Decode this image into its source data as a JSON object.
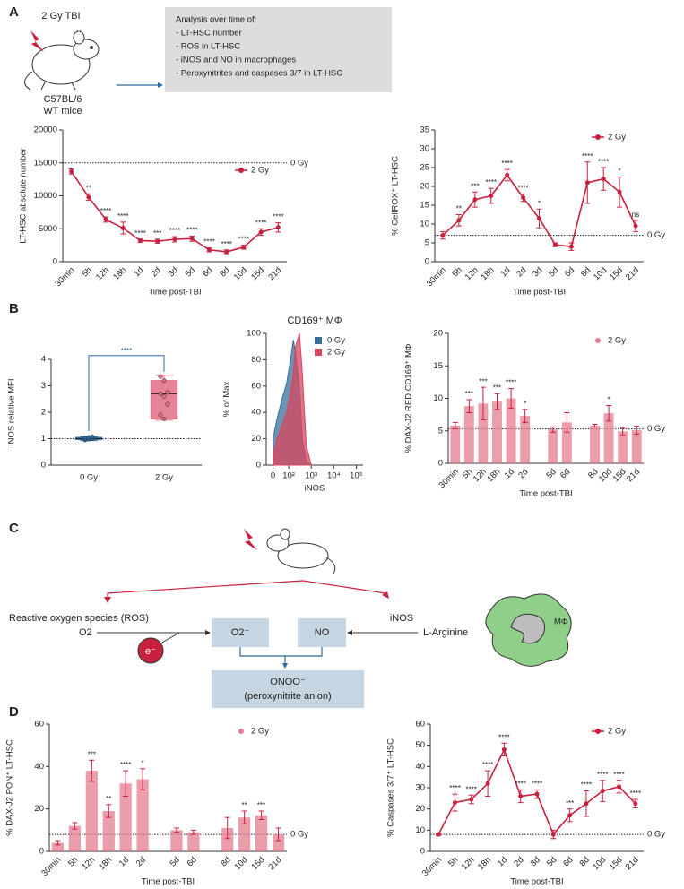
{
  "panels": [
    "A",
    "B",
    "C",
    "D"
  ],
  "schematic": {
    "dose": "2 Gy TBI",
    "strain": "C57BL/6",
    "mice": "WT mice",
    "box_title": "Analysis over time of:",
    "items": [
      "- LT-HSC number",
      "- ROS in LT-HSC",
      "- iNOS and NO in macrophages",
      "- Peroxynitrites and caspases 3/7 in LT-HSC"
    ]
  },
  "diagram": {
    "ros": "Reactive oxygen species (ROS)",
    "o2": "O2",
    "electron": "e⁻",
    "superoxide": "O2⁻",
    "no": "NO",
    "inos": "iNOS",
    "arginine": "L-Arginine",
    "macrophage": "MΦ",
    "product": "ONOO⁻",
    "product_name": "(peroxynitrite anion)"
  },
  "chart_data": [
    {
      "type": "line",
      "y_label": "LT-HSC absolute number",
      "x_label": "Time post-TBI",
      "categories": [
        "30min",
        "5h",
        "12h",
        "18h",
        "1d",
        "2d",
        "3d",
        "5d",
        "6d",
        "8d",
        "10d",
        "15d",
        "21d"
      ],
      "series": [
        {
          "name": "2 Gy",
          "color": "#c8203f",
          "values": [
            13700,
            9800,
            6400,
            5100,
            3200,
            3100,
            3400,
            3500,
            1800,
            1500,
            2200,
            4500,
            5200
          ],
          "errors": [
            400,
            500,
            400,
            900,
            250,
            300,
            400,
            400,
            300,
            300,
            300,
            500,
            700
          ]
        }
      ],
      "annotations": [
        null,
        "**",
        "****",
        "****",
        "****",
        "***",
        "****",
        "****",
        "****",
        "****",
        "****",
        "****",
        "****"
      ],
      "reference": {
        "value": 15000,
        "label": "0 Gy"
      },
      "ylim": [
        0,
        20000
      ],
      "yticks": [
        0,
        5000,
        10000,
        15000,
        20000
      ],
      "legend": "right"
    },
    {
      "type": "line",
      "y_label": "% CellROX⁺ LT-HSC",
      "x_label": "Time post-TBI",
      "categories": [
        "30min",
        "5h",
        "12h",
        "18h",
        "1d",
        "2d",
        "3d",
        "5d",
        "6d",
        "8d",
        "10d",
        "15d",
        "21d"
      ],
      "series": [
        {
          "name": "2 Gy",
          "color": "#c8203f",
          "values": [
            7,
            11,
            16.5,
            17.5,
            23,
            17,
            11.5,
            4.5,
            4,
            21,
            22,
            18.5,
            9.5
          ],
          "errors": [
            1,
            1.5,
            2,
            2,
            1.5,
            1,
            2.5,
            0.5,
            1,
            5.5,
            3,
            4,
            1.5
          ]
        }
      ],
      "annotations": [
        null,
        "**",
        "***",
        "****",
        "****",
        "****",
        "*",
        null,
        null,
        "****",
        "****",
        "*",
        "ns"
      ],
      "reference": {
        "value": 7,
        "label": "0 Gy"
      },
      "ylim": [
        0,
        35
      ],
      "yticks": [
        0,
        5,
        10,
        15,
        20,
        25,
        30,
        35
      ],
      "legend": "upper right"
    },
    {
      "type": "box",
      "y_label": "iNOS relative MFI",
      "categories": [
        "0 Gy",
        "2 Gy"
      ],
      "colors": [
        "#2e6b9e",
        "#e06f84"
      ],
      "min": [
        0.93,
        1.7
      ],
      "q1": [
        0.97,
        1.75
      ],
      "median": [
        1.0,
        2.7
      ],
      "q3": [
        1.05,
        3.2
      ],
      "max": [
        1.08,
        3.4
      ],
      "points": [
        [
          0.95,
          0.98,
          1.0,
          1.02,
          1.05,
          1.07
        ],
        [
          3.35,
          3.2,
          2.75,
          2.7,
          2.6,
          2.3,
          1.9,
          1.75
        ]
      ],
      "significance": "****",
      "reference": {
        "value": 1
      },
      "ylim": [
        0,
        4
      ],
      "yticks": [
        0,
        1,
        2,
        3,
        4
      ]
    },
    {
      "type": "area",
      "title": "CD169⁺ MΦ",
      "y_label": "% of Max",
      "x_label": "iNOS",
      "xscale": "log",
      "x": [
        20,
        30,
        50,
        80,
        120,
        160,
        200,
        300,
        400,
        600,
        1000
      ],
      "series": [
        {
          "name": "0 Gy",
          "color": "#3a6f99",
          "values": [
            20,
            35,
            50,
            62,
            80,
            95,
            85,
            60,
            20,
            3,
            0
          ]
        },
        {
          "name": "2 Gy",
          "color": "#d9455f",
          "values": [
            10,
            20,
            30,
            40,
            55,
            70,
            90,
            100,
            70,
            15,
            0
          ]
        }
      ],
      "xlim": [
        10,
        200000
      ],
      "xticks": [
        {
          "value": 20,
          "label": "0"
        },
        {
          "value": 100,
          "label": "10²"
        },
        {
          "value": 1000,
          "label": "10³"
        },
        {
          "value": 10000,
          "label": "10⁴"
        },
        {
          "value": 100000,
          "label": "10⁵"
        }
      ],
      "ylim": [
        0,
        100
      ],
      "yticks": [
        0,
        20,
        40,
        60,
        80,
        100
      ],
      "legend": "upper right"
    },
    {
      "type": "bar",
      "y_label": "% DAX-J2 RED CD169⁺ MΦ",
      "x_label": "Time post-TBI",
      "categories": [
        "30min",
        "5h",
        "12h",
        "18h",
        "1d",
        "2d",
        null,
        "5d",
        "6d",
        null,
        "8d",
        "10d",
        "15d",
        "21d"
      ],
      "series": [
        {
          "name": "2 Gy",
          "color": "#e57c90",
          "values": [
            5.8,
            8.8,
            9.2,
            9.5,
            10,
            7.3,
            null,
            5.2,
            6.3,
            null,
            5.8,
            7.7,
            4.9,
            5.1
          ],
          "errors": [
            0.5,
            1,
            2.5,
            1.2,
            1.5,
            1,
            null,
            0.4,
            1.5,
            null,
            0.2,
            1.2,
            0.6,
            0.6
          ]
        }
      ],
      "annotations": [
        null,
        "***",
        "***",
        "***",
        "****",
        "*",
        null,
        null,
        null,
        null,
        null,
        "*",
        null,
        null
      ],
      "reference": {
        "value": 5.3,
        "label": "0 Gy"
      },
      "ylim": [
        0,
        20
      ],
      "yticks": [
        0,
        5,
        10,
        15,
        20
      ],
      "legend": "upper right"
    },
    {
      "type": "bar",
      "y_label": "% DAX-J2 PON⁺ LT-HSC",
      "x_label": "Time post-TBI",
      "categories": [
        "30min",
        "5h",
        "12h",
        "18h",
        "1d",
        "2d",
        null,
        "5d",
        "6d",
        null,
        "8d",
        "10d",
        "15d",
        "21d"
      ],
      "series": [
        {
          "name": "2 Gy",
          "color": "#e57c90",
          "values": [
            4,
            12,
            38,
            19,
            32,
            34,
            null,
            10,
            9,
            null,
            11,
            16,
            17,
            8
          ],
          "errors": [
            1,
            1.5,
            5,
            3,
            6,
            5,
            null,
            1,
            1,
            null,
            5,
            3,
            2,
            3
          ]
        }
      ],
      "annotations": [
        null,
        null,
        "***",
        "**",
        "****",
        "*",
        null,
        null,
        null,
        null,
        null,
        "**",
        "***",
        null
      ],
      "reference": {
        "value": 8,
        "label": "0 Gy"
      },
      "ylim": [
        0,
        60
      ],
      "yticks": [
        0,
        20,
        40,
        60
      ],
      "legend": "upper right"
    },
    {
      "type": "line",
      "y_label": "% Caspases 3/7⁺ LT-HSC",
      "x_label": "Time post-TBI",
      "categories": [
        "30min",
        "5h",
        "12h",
        "18h",
        "1d",
        "2d",
        "3d",
        "5d",
        "6d",
        "8d",
        "10d",
        "15d",
        "21d"
      ],
      "series": [
        {
          "name": "2 Gy",
          "color": "#c8203f",
          "values": [
            8,
            23,
            24.5,
            32,
            48,
            26,
            27,
            8,
            17,
            22.5,
            28.5,
            30.5,
            22.5
          ],
          "errors": [
            0.5,
            4,
            2,
            6,
            3,
            3,
            2,
            2,
            3,
            6,
            5,
            3,
            2
          ]
        }
      ],
      "annotations": [
        null,
        "****",
        "****",
        "****",
        "****",
        "****",
        "****",
        null,
        "***",
        "****",
        "****",
        "****",
        "****"
      ],
      "reference": {
        "value": 8,
        "label": "0 Gy"
      },
      "ylim": [
        0,
        60
      ],
      "yticks": [
        0,
        10,
        20,
        30,
        40,
        50,
        60
      ],
      "legend": "upper right"
    }
  ]
}
